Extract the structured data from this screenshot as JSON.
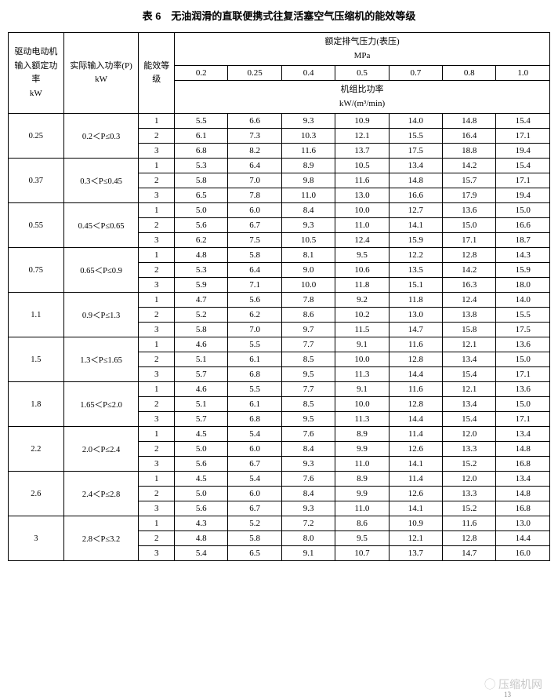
{
  "title": "表 6　无油润滑的直联便携式往复活塞空气压缩机的能效等级",
  "headers": {
    "col1": "驱动电动机输入额定功率\nkW",
    "col2": "实际输入功率(P)\nkW",
    "col3": "能效等级",
    "pressure_title": "额定排气压力(表压)\nMPa",
    "power_ratio_title": "机组比功率\nkW/(m³/min)",
    "pressures": [
      "0.2",
      "0.25",
      "0.4",
      "0.5",
      "0.7",
      "0.8",
      "1.0"
    ]
  },
  "groups": [
    {
      "kw": "0.25",
      "range": "0.2＜P≤0.3",
      "rows": [
        [
          "1",
          "5.5",
          "6.6",
          "9.3",
          "10.9",
          "14.0",
          "14.8",
          "15.4"
        ],
        [
          "2",
          "6.1",
          "7.3",
          "10.3",
          "12.1",
          "15.5",
          "16.4",
          "17.1"
        ],
        [
          "3",
          "6.8",
          "8.2",
          "11.6",
          "13.7",
          "17.5",
          "18.8",
          "19.4"
        ]
      ]
    },
    {
      "kw": "0.37",
      "range": "0.3＜P≤0.45",
      "rows": [
        [
          "1",
          "5.3",
          "6.4",
          "8.9",
          "10.5",
          "13.4",
          "14.2",
          "15.4"
        ],
        [
          "2",
          "5.8",
          "7.0",
          "9.8",
          "11.6",
          "14.8",
          "15.7",
          "17.1"
        ],
        [
          "3",
          "6.5",
          "7.8",
          "11.0",
          "13.0",
          "16.6",
          "17.9",
          "19.4"
        ]
      ]
    },
    {
      "kw": "0.55",
      "range": "0.45＜P≤0.65",
      "rows": [
        [
          "1",
          "5.0",
          "6.0",
          "8.4",
          "10.0",
          "12.7",
          "13.6",
          "15.0"
        ],
        [
          "2",
          "5.6",
          "6.7",
          "9.3",
          "11.0",
          "14.1",
          "15.0",
          "16.6"
        ],
        [
          "3",
          "6.2",
          "7.5",
          "10.5",
          "12.4",
          "15.9",
          "17.1",
          "18.7"
        ]
      ]
    },
    {
      "kw": "0.75",
      "range": "0.65＜P≤0.9",
      "rows": [
        [
          "1",
          "4.8",
          "5.8",
          "8.1",
          "9.5",
          "12.2",
          "12.8",
          "14.3"
        ],
        [
          "2",
          "5.3",
          "6.4",
          "9.0",
          "10.6",
          "13.5",
          "14.2",
          "15.9"
        ],
        [
          "3",
          "5.9",
          "7.1",
          "10.0",
          "11.8",
          "15.1",
          "16.3",
          "18.0"
        ]
      ]
    },
    {
      "kw": "1.1",
      "range": "0.9＜P≤1.3",
      "rows": [
        [
          "1",
          "4.7",
          "5.6",
          "7.8",
          "9.2",
          "11.8",
          "12.4",
          "14.0"
        ],
        [
          "2",
          "5.2",
          "6.2",
          "8.6",
          "10.2",
          "13.0",
          "13.8",
          "15.5"
        ],
        [
          "3",
          "5.8",
          "7.0",
          "9.7",
          "11.5",
          "14.7",
          "15.8",
          "17.5"
        ]
      ]
    },
    {
      "kw": "1.5",
      "range": "1.3＜P≤1.65",
      "rows": [
        [
          "1",
          "4.6",
          "5.5",
          "7.7",
          "9.1",
          "11.6",
          "12.1",
          "13.6"
        ],
        [
          "2",
          "5.1",
          "6.1",
          "8.5",
          "10.0",
          "12.8",
          "13.4",
          "15.0"
        ],
        [
          "3",
          "5.7",
          "6.8",
          "9.5",
          "11.3",
          "14.4",
          "15.4",
          "17.1"
        ]
      ]
    },
    {
      "kw": "1.8",
      "range": "1.65＜P≤2.0",
      "rows": [
        [
          "1",
          "4.6",
          "5.5",
          "7.7",
          "9.1",
          "11.6",
          "12.1",
          "13.6"
        ],
        [
          "2",
          "5.1",
          "6.1",
          "8.5",
          "10.0",
          "12.8",
          "13.4",
          "15.0"
        ],
        [
          "3",
          "5.7",
          "6.8",
          "9.5",
          "11.3",
          "14.4",
          "15.4",
          "17.1"
        ]
      ]
    },
    {
      "kw": "2.2",
      "range": "2.0＜P≤2.4",
      "rows": [
        [
          "1",
          "4.5",
          "5.4",
          "7.6",
          "8.9",
          "11.4",
          "12.0",
          "13.4"
        ],
        [
          "2",
          "5.0",
          "6.0",
          "8.4",
          "9.9",
          "12.6",
          "13.3",
          "14.8"
        ],
        [
          "3",
          "5.6",
          "6.7",
          "9.3",
          "11.0",
          "14.1",
          "15.2",
          "16.8"
        ]
      ]
    },
    {
      "kw": "2.6",
      "range": "2.4＜P≤2.8",
      "rows": [
        [
          "1",
          "4.5",
          "5.4",
          "7.6",
          "8.9",
          "11.4",
          "12.0",
          "13.4"
        ],
        [
          "2",
          "5.0",
          "6.0",
          "8.4",
          "9.9",
          "12.6",
          "13.3",
          "14.8"
        ],
        [
          "3",
          "5.6",
          "6.7",
          "9.3",
          "11.0",
          "14.1",
          "15.2",
          "16.8"
        ]
      ]
    },
    {
      "kw": "3",
      "range": "2.8＜P≤3.2",
      "rows": [
        [
          "1",
          "4.3",
          "5.2",
          "7.2",
          "8.6",
          "10.9",
          "11.6",
          "13.0"
        ],
        [
          "2",
          "4.8",
          "5.8",
          "8.0",
          "9.5",
          "12.1",
          "12.8",
          "14.4"
        ],
        [
          "3",
          "5.4",
          "6.5",
          "9.1",
          "10.7",
          "13.7",
          "14.7",
          "16.0"
        ]
      ]
    }
  ],
  "watermark": "压缩机网",
  "page_num": "13"
}
